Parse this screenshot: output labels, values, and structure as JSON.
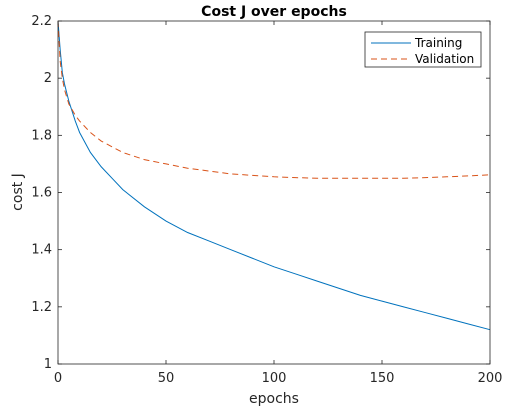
{
  "chart_data": {
    "type": "line",
    "title": "Cost J over epochs",
    "xlabel": "epochs",
    "ylabel": "cost J",
    "xlim": [
      0,
      200
    ],
    "ylim": [
      1,
      2.2
    ],
    "xticks": [
      0,
      50,
      100,
      150,
      200
    ],
    "yticks": [
      1,
      1.2,
      1.4,
      1.6,
      1.8,
      2,
      2.2
    ],
    "xtick_labels": [
      "0",
      "50",
      "100",
      "150",
      "200"
    ],
    "ytick_labels": [
      "1",
      "1.2",
      "1.4",
      "1.6",
      "1.8",
      "2",
      "2.2"
    ],
    "grid": false,
    "legend_position": "top-right",
    "series": [
      {
        "name": "Training",
        "color": "#0072BD",
        "style": "solid",
        "x": [
          0,
          1,
          2,
          3,
          5,
          8,
          10,
          15,
          20,
          25,
          30,
          40,
          50,
          60,
          70,
          80,
          90,
          100,
          110,
          120,
          130,
          140,
          150,
          160,
          170,
          180,
          190,
          200
        ],
        "values": [
          2.2,
          2.1,
          2.02,
          1.98,
          1.92,
          1.85,
          1.81,
          1.74,
          1.69,
          1.65,
          1.61,
          1.55,
          1.5,
          1.46,
          1.43,
          1.4,
          1.37,
          1.34,
          1.315,
          1.29,
          1.265,
          1.24,
          1.22,
          1.2,
          1.18,
          1.16,
          1.14,
          1.12
        ]
      },
      {
        "name": "Validation",
        "color": "#D95319",
        "style": "dashed",
        "x": [
          0,
          1,
          2,
          3,
          5,
          8,
          10,
          15,
          20,
          25,
          30,
          40,
          50,
          60,
          70,
          80,
          90,
          100,
          110,
          120,
          130,
          140,
          150,
          160,
          170,
          180,
          190,
          200
        ],
        "values": [
          2.2,
          2.06,
          2.0,
          1.96,
          1.91,
          1.87,
          1.85,
          1.81,
          1.78,
          1.76,
          1.74,
          1.715,
          1.7,
          1.685,
          1.675,
          1.665,
          1.66,
          1.655,
          1.652,
          1.65,
          1.65,
          1.65,
          1.65,
          1.65,
          1.652,
          1.655,
          1.658,
          1.662
        ]
      }
    ]
  }
}
